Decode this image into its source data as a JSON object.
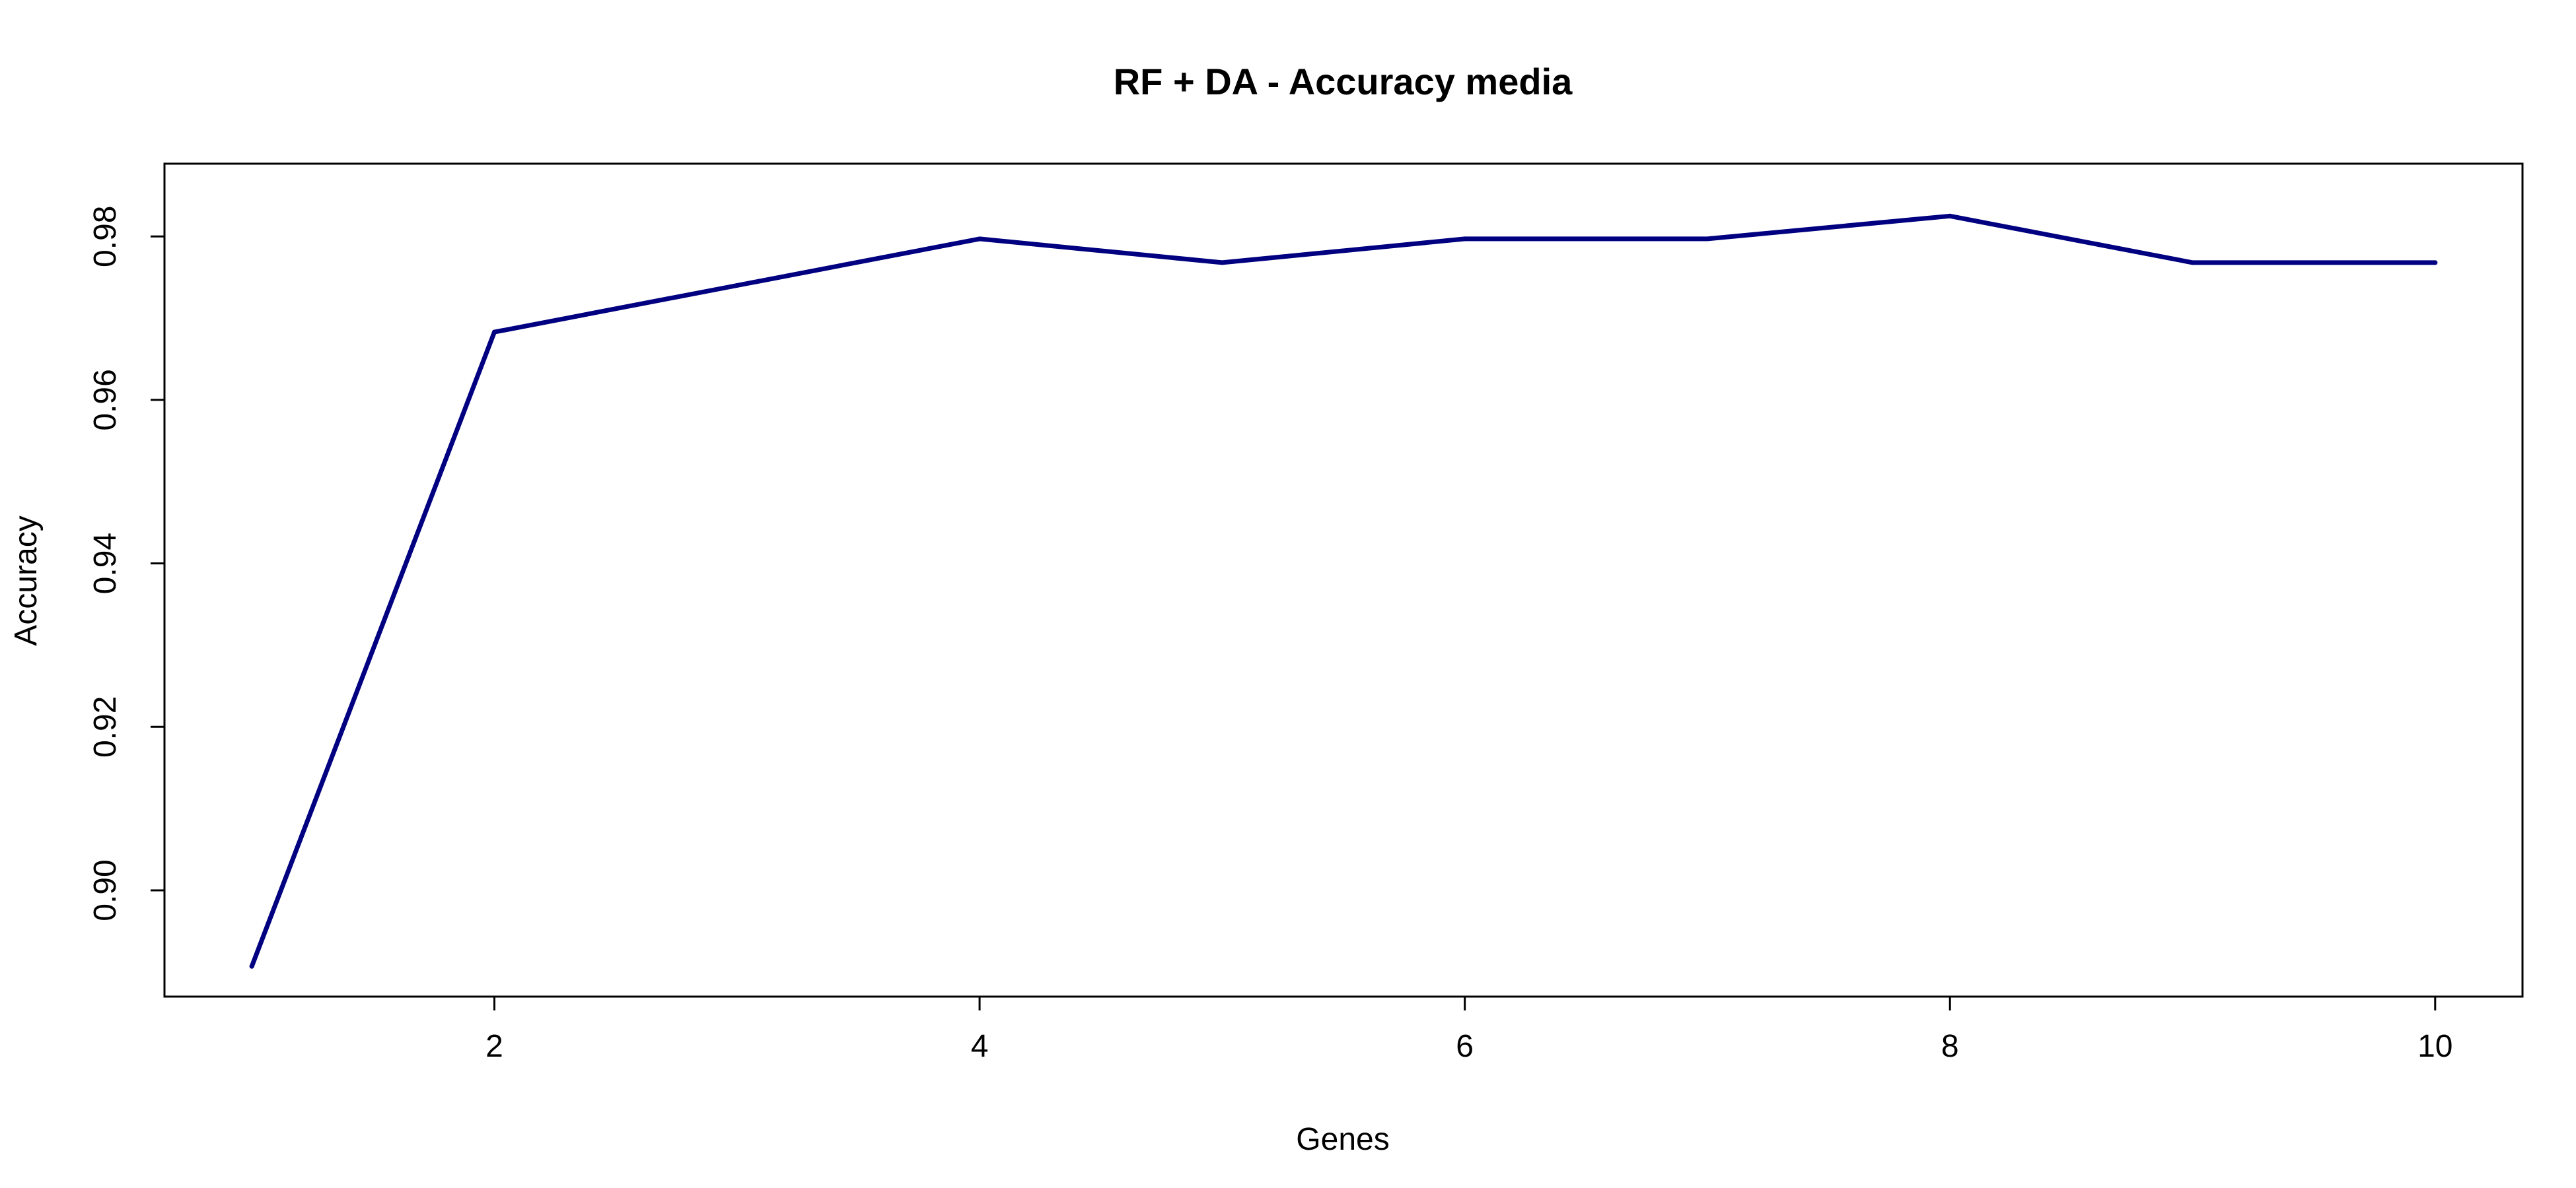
{
  "chart_data": {
    "type": "line",
    "title": "RF + DA - Accuracy media",
    "xlabel": "Genes",
    "ylabel": "Accuracy",
    "x": [
      1,
      2,
      3,
      4,
      5,
      6,
      7,
      8,
      9,
      10
    ],
    "series": [
      {
        "values": [
          0.8907,
          0.9683,
          0.974,
          0.9797,
          0.9768,
          0.9797,
          0.9797,
          0.9825,
          0.9768,
          0.9768
        ],
        "color": "#000080"
      }
    ],
    "xlim": [
      0.64,
      10.36
    ],
    "ylim": [
      0.887,
      0.9889
    ],
    "xticks": [
      2,
      4,
      6,
      8,
      10
    ],
    "xtick_labels": [
      "2",
      "4",
      "6",
      "8",
      "10"
    ],
    "yticks": [
      0.9,
      0.92,
      0.94,
      0.96,
      0.98
    ],
    "ytick_labels": [
      "0.90",
      "0.92",
      "0.94",
      "0.96",
      "0.98"
    ],
    "grid": false,
    "legend": "none"
  }
}
